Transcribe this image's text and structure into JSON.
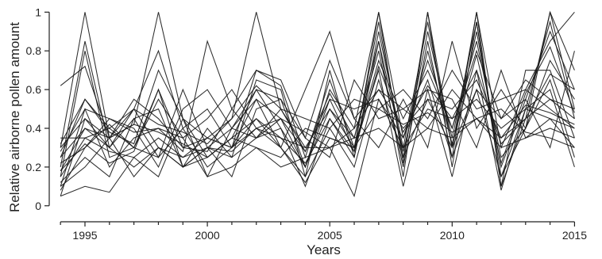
{
  "chart_data": {
    "type": "line",
    "title": "",
    "xlabel": "Years",
    "ylabel": "Relative airborne pollen amount",
    "xlim": [
      1993.8,
      2015.7
    ],
    "ylim": [
      -0.05,
      1.03
    ],
    "x_ticks": [
      1995,
      2000,
      2005,
      2010,
      2015
    ],
    "x_tick_labels": [
      "1995",
      "2000",
      "2005",
      "2010",
      "2015"
    ],
    "y_ticks": [
      0,
      0.2,
      0.4,
      0.6,
      0.8,
      1
    ],
    "y_tick_labels": [
      "0",
      "0.2",
      "0.4",
      "0.6",
      "0.8",
      "1"
    ],
    "grid": false,
    "legend": "none",
    "line_color": "#1a1a1a",
    "series": [
      {
        "x": [
          1994,
          1995,
          1996,
          1997,
          1998,
          1999,
          2000,
          2001,
          2002,
          2003,
          2004,
          2005,
          2006,
          2007,
          2008,
          2009,
          2010,
          2011,
          2012,
          2013,
          2014,
          2015
        ],
        "values": [
          0.62,
          0.72,
          0.35,
          0.42,
          1.0,
          0.45,
          0.25,
          0.35,
          0.6,
          0.55,
          0.2,
          0.55,
          0.28,
          1.0,
          0.22,
          1.0,
          0.3,
          1.0,
          0.1,
          0.45,
          1.0,
          0.5
        ]
      },
      {
        "x": [
          1994,
          1995,
          1996,
          1997,
          1998,
          1999,
          2000,
          2001,
          2002,
          2003,
          2004,
          2005,
          2006,
          2007,
          2008,
          2009,
          2010,
          2011,
          2012,
          2013,
          2014,
          2015
        ],
        "values": [
          0.3,
          1.0,
          0.35,
          0.5,
          0.3,
          0.25,
          0.35,
          0.3,
          0.7,
          0.62,
          0.25,
          0.65,
          0.3,
          0.95,
          0.25,
          0.9,
          0.35,
          0.95,
          0.15,
          0.5,
          0.95,
          0.45
        ]
      },
      {
        "x": [
          1994,
          1995,
          1996,
          1997,
          1998,
          1999,
          2000,
          2001,
          2002,
          2003,
          2004,
          2005,
          2006,
          2007,
          2008,
          2009,
          2010,
          2011,
          2012,
          2013,
          2014,
          2015
        ],
        "values": [
          0.2,
          0.85,
          0.3,
          0.45,
          0.5,
          0.2,
          0.3,
          0.25,
          0.65,
          0.6,
          0.15,
          0.7,
          0.25,
          0.9,
          0.3,
          0.95,
          0.3,
          0.9,
          0.2,
          0.55,
          0.9,
          0.6
        ]
      },
      {
        "x": [
          1994,
          1995,
          1996,
          1997,
          1998,
          1999,
          2000,
          2001,
          2002,
          2003,
          2004,
          2005,
          2006,
          2007,
          2008,
          2009,
          2010,
          2011,
          2012,
          2013,
          2014,
          2015
        ],
        "values": [
          0.15,
          0.8,
          0.25,
          0.3,
          0.6,
          0.3,
          0.35,
          0.45,
          1.0,
          0.5,
          0.3,
          0.5,
          0.35,
          0.8,
          0.2,
          0.85,
          0.25,
          1.0,
          0.3,
          0.6,
          0.85,
          1.0
        ]
      },
      {
        "x": [
          1994,
          1995,
          1996,
          1997,
          1998,
          1999,
          2000,
          2001,
          2002,
          2003,
          2004,
          2005,
          2006,
          2007,
          2008,
          2009,
          2010,
          2011,
          2012,
          2013,
          2014,
          2015
        ],
        "values": [
          0.25,
          0.55,
          0.4,
          0.5,
          0.8,
          0.4,
          0.2,
          0.3,
          0.55,
          0.45,
          0.2,
          0.6,
          0.4,
          1.0,
          0.35,
          0.75,
          0.4,
          0.85,
          0.25,
          0.4,
          1.0,
          0.7
        ]
      },
      {
        "x": [
          1994,
          1995,
          1996,
          1997,
          1998,
          1999,
          2000,
          2001,
          2002,
          2003,
          2004,
          2005,
          2006,
          2007,
          2008,
          2009,
          2010,
          2011,
          2012,
          2013,
          2014,
          2015
        ],
        "values": [
          0.1,
          0.5,
          0.2,
          0.35,
          0.4,
          0.35,
          0.15,
          0.4,
          0.6,
          0.4,
          0.1,
          0.45,
          0.25,
          0.85,
          0.15,
          1.0,
          0.2,
          0.95,
          0.1,
          0.7,
          0.7,
          0.35
        ]
      },
      {
        "x": [
          1994,
          1995,
          1996,
          1997,
          1998,
          1999,
          2000,
          2001,
          2002,
          2003,
          2004,
          2005,
          2006,
          2007,
          2008,
          2009,
          2010,
          2011,
          2012,
          2013,
          2014,
          2015
        ],
        "values": [
          0.05,
          0.45,
          0.3,
          0.2,
          0.3,
          0.2,
          0.25,
          0.35,
          0.45,
          0.3,
          0.12,
          0.35,
          0.3,
          0.7,
          0.1,
          0.6,
          0.15,
          0.7,
          0.08,
          0.5,
          0.6,
          0.2
        ]
      },
      {
        "x": [
          1994,
          1995,
          1996,
          1997,
          1998,
          1999,
          2000,
          2001,
          2002,
          2003,
          2004,
          2005,
          2006,
          2007,
          2008,
          2009,
          2010,
          2011,
          2012,
          2013,
          2014,
          2015
        ],
        "values": [
          0.18,
          0.4,
          0.35,
          0.55,
          0.45,
          0.3,
          0.28,
          0.5,
          0.7,
          0.65,
          0.35,
          0.75,
          0.45,
          0.6,
          0.4,
          0.55,
          0.5,
          0.65,
          0.35,
          0.45,
          0.55,
          0.45
        ]
      },
      {
        "x": [
          1994,
          1995,
          1996,
          1997,
          1998,
          1999,
          2000,
          2001,
          2002,
          2003,
          2004,
          2005,
          2006,
          2007,
          2008,
          2009,
          2010,
          2011,
          2012,
          2013,
          2014,
          2015
        ],
        "values": [
          0.08,
          0.3,
          0.45,
          0.4,
          0.2,
          0.5,
          0.6,
          0.4,
          0.35,
          0.5,
          0.45,
          0.4,
          0.55,
          0.5,
          0.6,
          0.45,
          0.7,
          0.5,
          0.55,
          0.6,
          0.5,
          0.4
        ]
      },
      {
        "x": [
          1994,
          1995,
          1996,
          1997,
          1998,
          1999,
          2000,
          2001,
          2002,
          2003,
          2004,
          2005,
          2006,
          2007,
          2008,
          2009,
          2010,
          2011,
          2012,
          2013,
          2014,
          2015
        ],
        "values": [
          0.35,
          0.35,
          0.28,
          0.25,
          0.35,
          0.25,
          0.3,
          0.28,
          0.4,
          0.35,
          0.3,
          0.3,
          0.35,
          0.4,
          0.3,
          0.4,
          0.35,
          0.45,
          0.3,
          0.35,
          0.4,
          0.35
        ]
      },
      {
        "x": [
          1994,
          1995,
          1996,
          1997,
          1998,
          1999,
          2000,
          2001,
          2002,
          2003,
          2004,
          2005,
          2006,
          2007,
          2008,
          2009,
          2010,
          2011,
          2012,
          2013,
          2014,
          2015
        ],
        "values": [
          0.05,
          0.1,
          0.07,
          0.25,
          0.15,
          0.45,
          0.15,
          0.2,
          0.3,
          0.2,
          0.25,
          0.3,
          0.05,
          0.55,
          0.35,
          0.65,
          0.25,
          0.6,
          0.45,
          0.55,
          0.3,
          0.8
        ]
      },
      {
        "x": [
          1994,
          1995,
          1996,
          1997,
          1998,
          1999,
          2000,
          2001,
          2002,
          2003,
          2004,
          2005,
          2006,
          2007,
          2008,
          2009,
          2010,
          2011,
          2012,
          2013,
          2014,
          2015
        ],
        "values": [
          0.22,
          0.3,
          0.42,
          0.3,
          0.55,
          0.35,
          0.45,
          0.6,
          0.4,
          0.3,
          0.6,
          0.9,
          0.45,
          0.3,
          0.55,
          0.3,
          0.85,
          0.4,
          0.6,
          0.4,
          0.75,
          0.55
        ]
      },
      {
        "x": [
          1994,
          1995,
          1996,
          1997,
          1998,
          1999,
          2000,
          2001,
          2002,
          2003,
          2004,
          2005,
          2006,
          2007,
          2008,
          2009,
          2010,
          2011,
          2012,
          2013,
          2014,
          2015
        ],
        "values": [
          0.12,
          0.25,
          0.15,
          0.45,
          0.25,
          0.6,
          0.3,
          0.15,
          0.5,
          0.55,
          0.35,
          0.25,
          0.65,
          0.45,
          0.5,
          0.6,
          0.55,
          0.3,
          0.7,
          0.35,
          0.45,
          0.3
        ]
      },
      {
        "x": [
          1994,
          1995,
          1996,
          1997,
          1998,
          1999,
          2000,
          2001,
          2002,
          2003,
          2004,
          2005,
          2006,
          2007,
          2008,
          2009,
          2010,
          2011,
          2012,
          2013,
          2014,
          2015
        ],
        "values": [
          0.28,
          0.5,
          0.45,
          0.38,
          0.4,
          0.28,
          0.85,
          0.5,
          0.35,
          0.4,
          0.2,
          0.5,
          0.3,
          0.75,
          0.45,
          0.7,
          0.4,
          0.8,
          0.45,
          0.65,
          0.55,
          0.5
        ]
      },
      {
        "x": [
          1994,
          1995,
          1996,
          1997,
          1998,
          1999,
          2000,
          2001,
          2002,
          2003,
          2004,
          2005,
          2006,
          2007,
          2008,
          2009,
          2010,
          2011,
          2012,
          2013,
          2014,
          2015
        ],
        "values": [
          0.18,
          0.32,
          0.22,
          0.28,
          0.6,
          0.2,
          0.4,
          0.25,
          0.35,
          0.45,
          0.28,
          0.55,
          0.5,
          0.55,
          0.3,
          0.5,
          0.45,
          0.55,
          0.4,
          0.5,
          0.45,
          0.4
        ]
      },
      {
        "x": [
          1994,
          1995,
          1996,
          1997,
          1998,
          1999,
          2000,
          2001,
          2002,
          2003,
          2004,
          2005,
          2006,
          2007,
          2008,
          2009,
          2010,
          2011,
          2012,
          2013,
          2014,
          2015
        ],
        "values": [
          0.3,
          0.45,
          0.35,
          0.42,
          0.38,
          0.32,
          0.25,
          0.35,
          0.3,
          0.25,
          0.4,
          0.35,
          0.3,
          0.5,
          0.42,
          0.48,
          0.38,
          0.45,
          0.35,
          0.52,
          0.48,
          0.42
        ]
      },
      {
        "x": [
          1994,
          1995,
          1996,
          1997,
          1998,
          1999,
          2000,
          2001,
          2002,
          2003,
          2004,
          2005,
          2006,
          2007,
          2008,
          2009,
          2010,
          2011,
          2012,
          2013,
          2014,
          2015
        ],
        "values": [
          0.1,
          0.2,
          0.35,
          0.15,
          0.3,
          0.2,
          0.3,
          0.4,
          0.55,
          0.3,
          0.15,
          0.4,
          0.2,
          0.65,
          0.25,
          0.55,
          0.3,
          0.6,
          0.15,
          0.4,
          0.65,
          0.25
        ]
      },
      {
        "x": [
          1994,
          1995,
          1996,
          1997,
          1998,
          1999,
          2000,
          2001,
          2002,
          2003,
          2004,
          2005,
          2006,
          2007,
          2008,
          2009,
          2010,
          2011,
          2012,
          2013,
          2014,
          2015
        ],
        "values": [
          0.25,
          0.4,
          0.3,
          0.5,
          0.42,
          0.38,
          0.32,
          0.45,
          0.62,
          0.5,
          0.28,
          0.58,
          0.35,
          0.85,
          0.28,
          0.8,
          0.32,
          0.78,
          0.22,
          0.58,
          0.82,
          0.48
        ]
      },
      {
        "x": [
          1994,
          1995,
          1996,
          1997,
          1998,
          1999,
          2000,
          2001,
          2002,
          2003,
          2004,
          2005,
          2006,
          2007,
          2008,
          2009,
          2010,
          2011,
          2012,
          2013,
          2014,
          2015
        ],
        "values": [
          0.32,
          0.55,
          0.38,
          0.32,
          0.7,
          0.45,
          0.35,
          0.3,
          0.45,
          0.35,
          0.22,
          0.45,
          0.28,
          0.72,
          0.38,
          0.62,
          0.45,
          0.7,
          0.32,
          0.45,
          0.68,
          0.6
        ]
      },
      {
        "x": [
          1994,
          1995,
          1996,
          1997,
          1998,
          1999,
          2000,
          2001,
          2002,
          2003,
          2004,
          2005,
          2006,
          2007,
          2008,
          2009,
          2010,
          2011,
          2012,
          2013,
          2014,
          2015
        ],
        "values": [
          0.15,
          0.35,
          0.4,
          0.3,
          0.25,
          0.4,
          0.5,
          0.3,
          0.4,
          0.45,
          0.38,
          0.3,
          0.4,
          0.6,
          0.5,
          0.4,
          0.6,
          0.45,
          0.5,
          0.38,
          0.35,
          0.3
        ]
      }
    ]
  }
}
